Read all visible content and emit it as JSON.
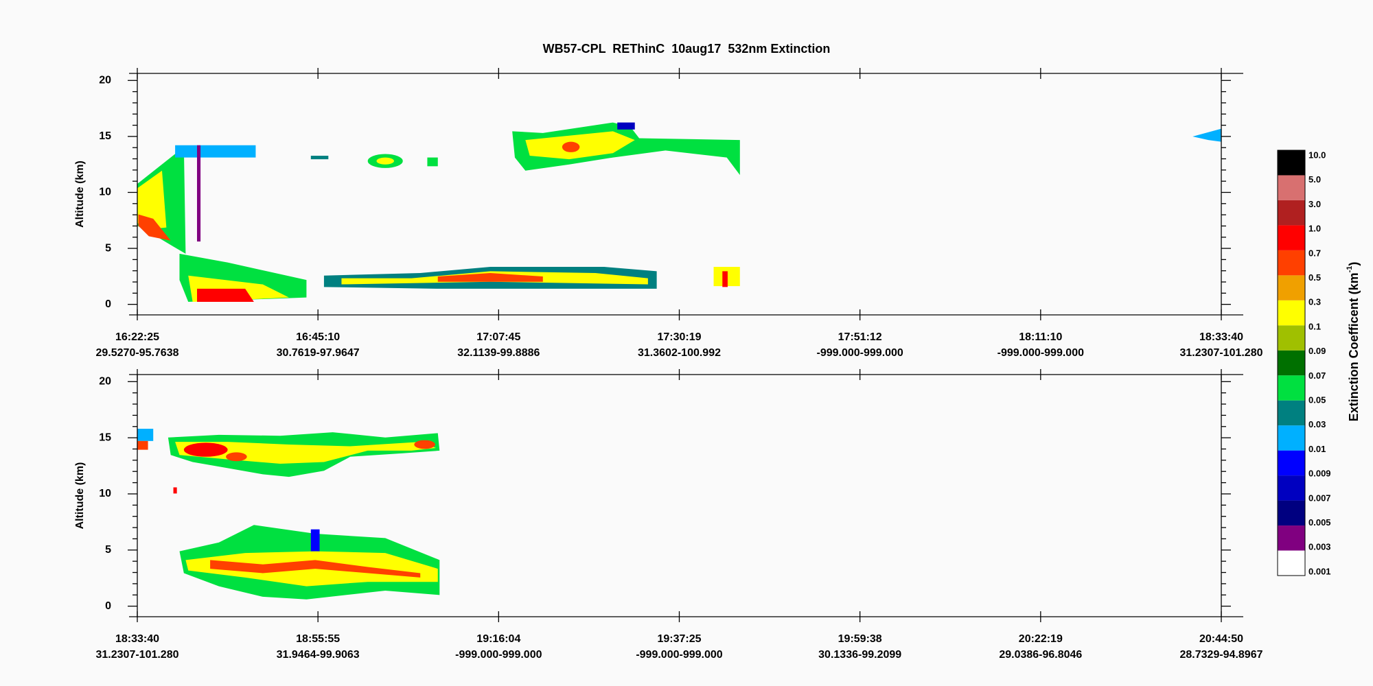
{
  "chart_data": {
    "type": "curtain",
    "title": "WB57-CPL  REThinC  10aug17  532nm Extinction",
    "panels": [
      {
        "ylabel": "Altitude (km)",
        "ylim": [
          -0.94,
          20.63
        ],
        "yticks": [
          0,
          5,
          10,
          15,
          20
        ],
        "x_labels": [
          {
            "time": "16:22:25",
            "position": "29.5270-95.7638"
          },
          {
            "time": "16:45:10",
            "position": "30.7619-97.9647"
          },
          {
            "time": "17:07:45",
            "position": "32.1139-99.8886"
          },
          {
            "time": "17:30:19",
            "position": "31.3602-100.992"
          },
          {
            "time": "17:51:12",
            "position": "-999.000-999.000"
          },
          {
            "time": "18:11:10",
            "position": "-999.000-999.000"
          },
          {
            "time": "18:33:40",
            "position": "31.2307-101.280"
          }
        ]
      },
      {
        "ylabel": "Altitude (km)",
        "ylim": [
          -0.94,
          20.63
        ],
        "yticks": [
          0,
          5,
          10,
          15,
          20
        ],
        "x_labels": [
          {
            "time": "18:33:40",
            "position": "31.2307-101.280"
          },
          {
            "time": "18:55:55",
            "position": "31.9464-99.9063"
          },
          {
            "time": "19:16:04",
            "position": "-999.000-999.000"
          },
          {
            "time": "19:37:25",
            "position": "-999.000-999.000"
          },
          {
            "time": "19:59:38",
            "position": "30.1336-99.2099"
          },
          {
            "time": "20:22:19",
            "position": "29.0386-96.8046"
          },
          {
            "time": "20:44:50",
            "position": "28.7329-94.8967"
          }
        ]
      }
    ],
    "colorbar": {
      "label": "Extinction Coefficent (km",
      "label_exponent": "-1",
      "label_close": ")",
      "ticks": [
        0.001,
        0.003,
        0.005,
        0.007,
        0.009,
        0.01,
        0.03,
        0.05,
        0.07,
        0.09,
        0.1,
        0.3,
        0.5,
        0.7,
        {
          "value": 1,
          "label": "1.0"
        },
        {
          "value": 3,
          "label": "3.0"
        },
        {
          "value": 5,
          "label": "5.0"
        },
        {
          "value": 10,
          "label": "10.0"
        }
      ],
      "colors": [
        "#ffffff",
        "#800080",
        "#000080",
        "#0000c0",
        "#0000ff",
        "#00b0ff",
        "#008080",
        "#00e040",
        "#007000",
        "#a0c000",
        "#ffff00",
        "#f0a000",
        "#ff4000",
        "#ff0000",
        "#b02020",
        "#d87070",
        "#000000"
      ]
    }
  }
}
